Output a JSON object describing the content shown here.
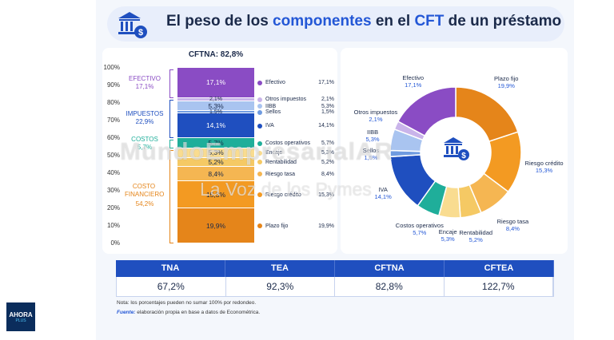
{
  "title": {
    "part1": "El peso de los ",
    "highlight1": "componentes",
    "part2": " en el ",
    "highlight2": "CFT",
    "part3": " de un préstamo"
  },
  "colors": {
    "purple": "#8a4cc4",
    "lavender": "#c9b4ea",
    "blue_light": "#a9c4f0",
    "blue_mid": "#6f9be0",
    "blue_dark": "#1f4fbf",
    "teal": "#1fae9a",
    "yellow": "#f5c964",
    "orange_light": "#f5b652",
    "orange_mid": "#f39a22",
    "orange_dark": "#e5851a"
  },
  "chart_data": [
    {
      "type": "bar",
      "title": "CFTNA: 82,8%",
      "yticks": [
        "0%",
        "10%",
        "20%",
        "30%",
        "40%",
        "50%",
        "60%",
        "70%",
        "80%",
        "90%",
        "100%"
      ],
      "ylim": [
        0,
        100
      ],
      "groups": [
        {
          "name": "EFECTIVO",
          "value": "17,1%"
        },
        {
          "name": "IMPUESTOS",
          "value": "22,9%"
        },
        {
          "name": "COSTOS",
          "value": "5,7%"
        },
        {
          "name": "COSTO FINANCIERO",
          "value": "54,2%"
        }
      ],
      "segments": [
        {
          "name": "Efectivo",
          "value": 17.1,
          "label": "17,1%",
          "color": "#8a4cc4"
        },
        {
          "name": "Otros impuestos",
          "value": 2.1,
          "label": "2,1%",
          "color": "#c9b4ea"
        },
        {
          "name": "IIBB",
          "value": 5.3,
          "label": "5,3%",
          "color": "#a9c4f0"
        },
        {
          "name": "Sellos",
          "value": 1.5,
          "label": "1,5%",
          "color": "#6f9be0"
        },
        {
          "name": "IVA",
          "value": 14.1,
          "label": "14,1%",
          "color": "#1f4fbf"
        },
        {
          "name": "Costos operativos",
          "value": 5.7,
          "label": "5,7%",
          "color": "#1fae9a"
        },
        {
          "name": "Encaje",
          "value": 5.3,
          "label": "5,3%",
          "color": "#f9dc90"
        },
        {
          "name": "Rentabilidad",
          "value": 5.2,
          "label": "5,2%",
          "color": "#f5c964"
        },
        {
          "name": "Riesgo tasa",
          "value": 8.4,
          "label": "8,4%",
          "color": "#f5b652"
        },
        {
          "name": "Riesgo crédito",
          "value": 15.3,
          "label": "15,3%",
          "color": "#f39a22"
        },
        {
          "name": "Plazo fijo",
          "value": 19.9,
          "label": "19,9%",
          "color": "#e5851a"
        }
      ]
    },
    {
      "type": "pie",
      "slices": [
        {
          "name": "Plazo fijo",
          "value": 19.9,
          "label": "19,9%",
          "color": "#e5851a"
        },
        {
          "name": "Riesgo crédito",
          "value": 15.3,
          "label": "15,3%",
          "color": "#f39a22"
        },
        {
          "name": "Riesgo tasa",
          "value": 8.4,
          "label": "8,4%",
          "color": "#f5b652"
        },
        {
          "name": "Rentabilidad",
          "value": 5.2,
          "label": "5,2%",
          "color": "#f5c964"
        },
        {
          "name": "Encaje",
          "value": 5.3,
          "label": "5,3%",
          "color": "#f9dc90"
        },
        {
          "name": "Costos operativos",
          "value": 5.7,
          "label": "5,7%",
          "color": "#1fae9a"
        },
        {
          "name": "IVA",
          "value": 14.1,
          "label": "14,1%",
          "color": "#1f4fbf"
        },
        {
          "name": "Sellos",
          "value": 1.5,
          "label": "1,5%",
          "color": "#6f9be0"
        },
        {
          "name": "IIBB",
          "value": 5.3,
          "label": "5,3%",
          "color": "#a9c4f0"
        },
        {
          "name": "Otros impuestos",
          "value": 2.1,
          "label": "2,1%",
          "color": "#c9b4ea"
        },
        {
          "name": "Efectivo",
          "value": 17.1,
          "label": "17,1%",
          "color": "#8a4cc4"
        }
      ]
    }
  ],
  "rates": [
    {
      "name": "TNA",
      "value": "67,2%"
    },
    {
      "name": "TEA",
      "value": "92,3%"
    },
    {
      "name": "CFTNA",
      "value": "82,8%"
    },
    {
      "name": "CFTEA",
      "value": "122,7%"
    }
  ],
  "note": "Nota: los porcentajes pueden no sumar 100% por redondeo.",
  "source": {
    "key": "Fuente:",
    "text": " elaboración propia en base a datos de Econométrica."
  },
  "watermark": {
    "line1": "MundoEmpresarialAR",
    "line2": "La Voz de los Pymes"
  },
  "logo": {
    "line1": "AHORA",
    "line2": "PLUS"
  }
}
